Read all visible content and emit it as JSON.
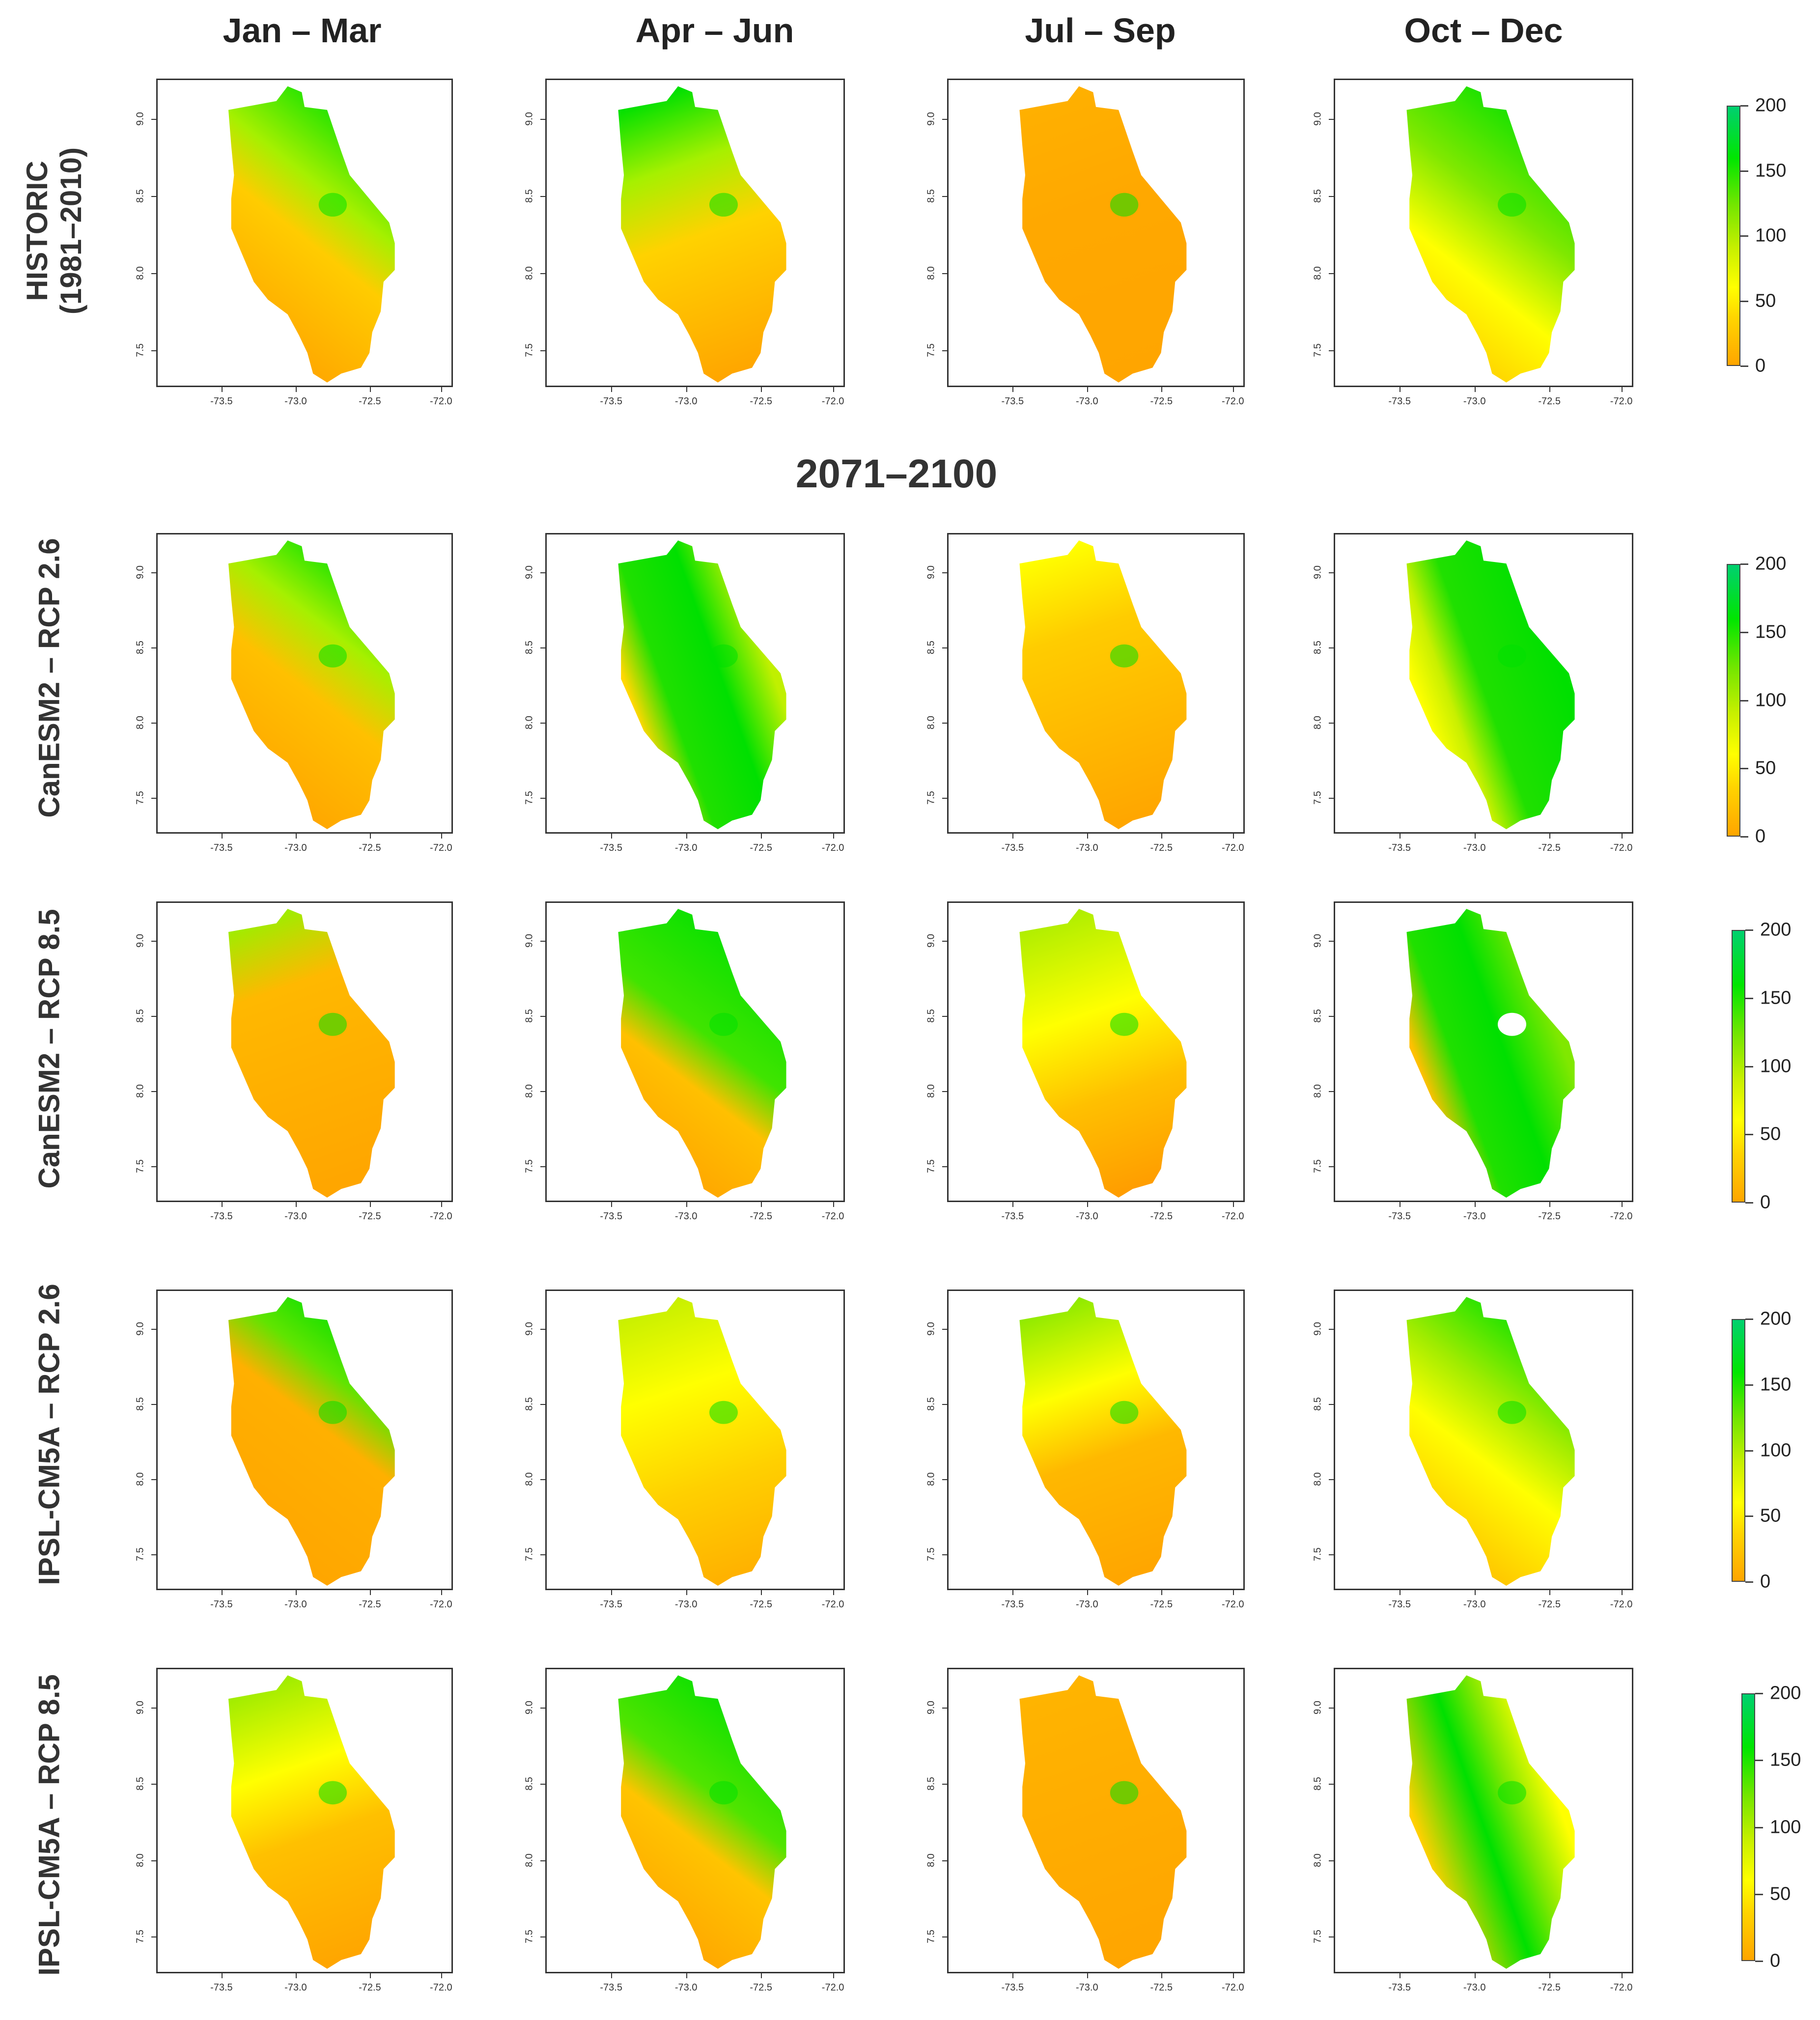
{
  "columns": [
    "Jan – Mar",
    "Apr – Jun",
    "Jul – Sep",
    "Oct – Dec"
  ],
  "section_title": "2071–2100",
  "rows": [
    {
      "line1": "HISTORIC",
      "line2": "(1981–2010)"
    },
    {
      "line1": "CanESM2 – RCP 2.6",
      "line2": ""
    },
    {
      "line1": "CanESM2 – RCP 8.5",
      "line2": ""
    },
    {
      "line1": "IPSL-CM5A – RCP 2.6",
      "line2": ""
    },
    {
      "line1": "IPSL-CM5A – RCP 8.5",
      "line2": ""
    }
  ],
  "x_ticks": [
    "-73.5",
    "-73.0",
    "-72.5",
    "-72.0"
  ],
  "y_ticks": [
    "7.5",
    "8.0",
    "8.5",
    "9.0"
  ],
  "legend_ticks": [
    "200",
    "150",
    "100",
    "50",
    "0"
  ],
  "legend_range": [
    0,
    200
  ],
  "colors": {
    "orange": "#ffa500",
    "yellow": "#ffff00",
    "lime": "#a6f000",
    "green": "#00e000",
    "frame": "#333333"
  },
  "panel_values": [
    [
      [
        "green-ne",
        "orange-sw"
      ],
      [
        "lime-n",
        "orange-s"
      ],
      [
        "orange-all",
        "green-spot"
      ],
      [
        "green-ne",
        "yellow-sw"
      ]
    ],
    [
      [
        "green-n",
        "orange-s"
      ],
      [
        "green-e",
        "yellow-w"
      ],
      [
        "orange-all",
        "yellow-n"
      ],
      [
        "green-all",
        "yellow-s"
      ]
    ],
    [
      [
        "orange-all",
        "lime-nw"
      ],
      [
        "green-ne",
        "orange-sw"
      ],
      [
        "lime-n",
        "orange-sw"
      ],
      [
        "green-e",
        "orange-w"
      ]
    ],
    [
      [
        "green-n",
        "orange-s"
      ],
      [
        "yellow-all",
        "green-ne"
      ],
      [
        "lime-n",
        "orange-s"
      ],
      [
        "green-n",
        "yellow-s"
      ]
    ],
    [
      [
        "yellow-n",
        "orange-s"
      ],
      [
        "green-ne",
        "orange-sw"
      ],
      [
        "orange-all",
        "orange-all"
      ],
      [
        "green-e",
        "orange-w"
      ]
    ]
  ]
}
